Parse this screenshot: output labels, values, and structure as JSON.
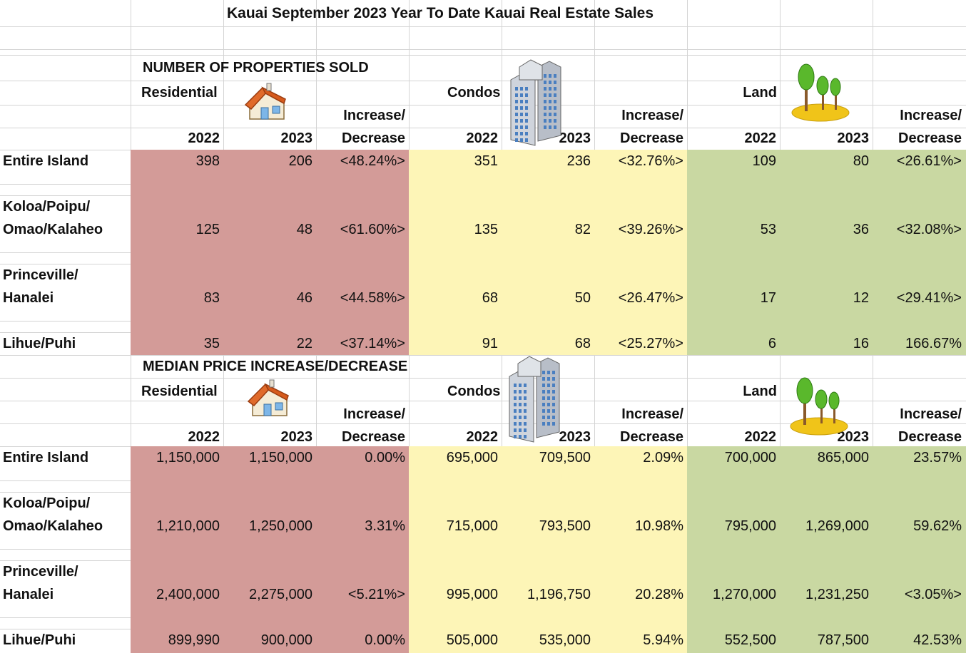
{
  "title": "Kauai September 2023 Year To Date Kauai Real Estate Sales",
  "colors": {
    "residential": "#d39b98",
    "condos": "#fdf5b7",
    "land": "#c9d8a2",
    "grid": "#d4d4d4"
  },
  "sold": {
    "heading": "NUMBER OF PROPERTIES SOLD",
    "groups": {
      "residential": "Residential",
      "condos": "Condos",
      "land": "Land"
    },
    "inc_top": "Increase/",
    "inc_bottom": "Decrease",
    "years": {
      "a": "2022",
      "b": "2023"
    },
    "rows": [
      {
        "label1": "Entire Island",
        "label2": "",
        "cells": [
          "398",
          "206",
          "<48.24%>",
          "351",
          "236",
          "<32.76%>",
          "109",
          "80",
          "<26.61%>"
        ]
      },
      {
        "label1": "Koloa/Poipu/",
        "label2": "Omao/Kalaheo",
        "cells": [
          "125",
          "48",
          "<61.60%>",
          "135",
          "82",
          "<39.26%>",
          "53",
          "36",
          "<32.08%>"
        ]
      },
      {
        "label1": "Princeville/",
        "label2": "Hanalei",
        "cells": [
          "83",
          "46",
          "<44.58%>",
          "68",
          "50",
          "<26.47%>",
          "17",
          "12",
          "<29.41%>"
        ]
      },
      {
        "label1": "Lihue/Puhi",
        "label2": "",
        "cells": [
          "35",
          "22",
          "<37.14%>",
          "91",
          "68",
          "<25.27%>",
          "6",
          "16",
          "166.67%"
        ]
      }
    ]
  },
  "median": {
    "heading": "MEDIAN PRICE INCREASE/DECREASE",
    "groups": {
      "residential": "Residential",
      "condos": "Condos",
      "land": "Land"
    },
    "inc_top": "Increase/",
    "inc_bottom": "Decrease",
    "years": {
      "a": "2022",
      "b": "2023"
    },
    "rows": [
      {
        "label1": "Entire Island",
        "label2": "",
        "cells": [
          "1,150,000",
          "1,150,000",
          "0.00%",
          "695,000",
          "709,500",
          "2.09%",
          "700,000",
          "865,000",
          "23.57%"
        ]
      },
      {
        "label1": "Koloa/Poipu/",
        "label2": "Omao/Kalaheo",
        "cells": [
          "1,210,000",
          "1,250,000",
          "3.31%",
          "715,000",
          "793,500",
          "10.98%",
          "795,000",
          "1,269,000",
          "59.62%"
        ]
      },
      {
        "label1": "Princeville/",
        "label2": "Hanalei",
        "cells": [
          "2,400,000",
          "2,275,000",
          "<5.21%>",
          "995,000",
          "1,196,750",
          "20.28%",
          "1,270,000",
          "1,231,250",
          "<3.05%>"
        ]
      },
      {
        "label1": "Lihue/Puhi",
        "label2": "",
        "cells": [
          "899,990",
          "900,000",
          "0.00%",
          "505,000",
          "535,000",
          "5.94%",
          "552,500",
          "787,500",
          "42.53%"
        ]
      }
    ]
  },
  "icons": {
    "house": "house-icon",
    "building": "building-icon",
    "trees": "trees-icon"
  }
}
